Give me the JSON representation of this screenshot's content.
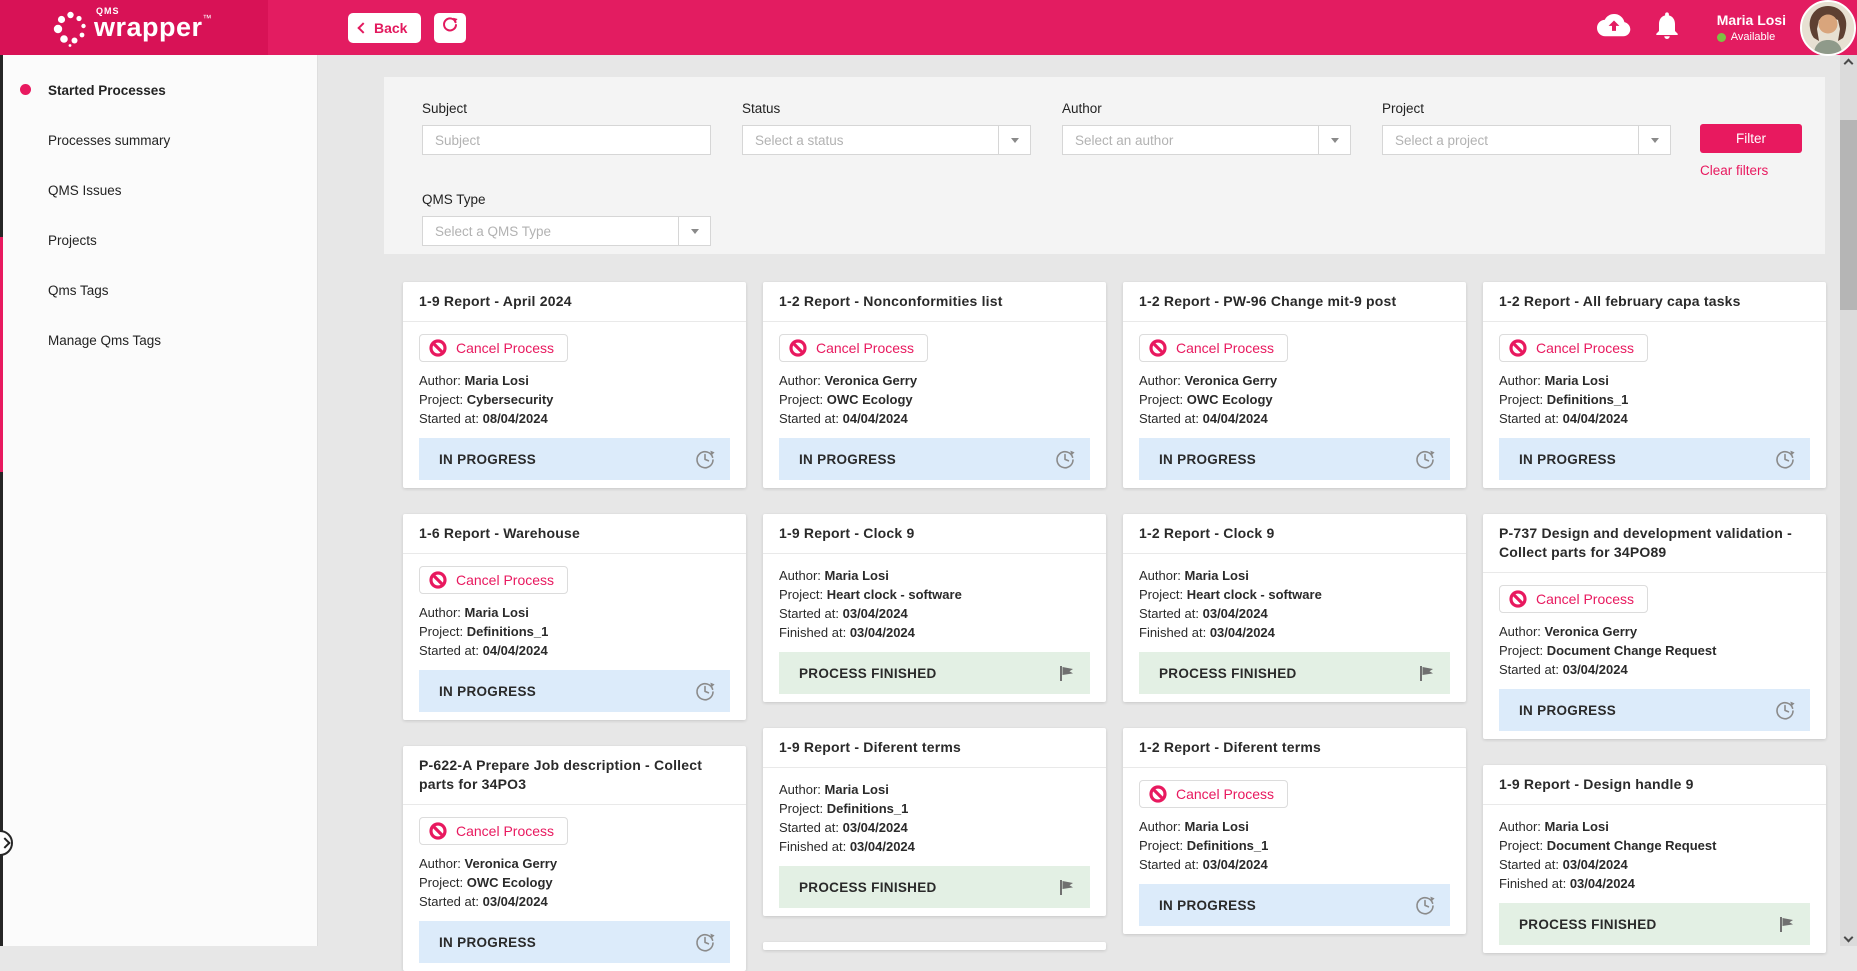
{
  "header": {
    "logo": {
      "qms": "QMS",
      "brand": "wrapper",
      "tm": "TM"
    },
    "back_label": "Back",
    "user": {
      "name": "Maria Losi",
      "status": "Available"
    }
  },
  "sidebar": {
    "items": [
      {
        "label": "Started Processes",
        "active": true
      },
      {
        "label": "Processes summary",
        "active": false
      },
      {
        "label": "QMS Issues",
        "active": false
      },
      {
        "label": "Projects",
        "active": false
      },
      {
        "label": "Qms Tags",
        "active": false
      },
      {
        "label": "Manage Qms Tags",
        "active": false
      }
    ]
  },
  "filters": {
    "subject_label": "Subject",
    "subject_placeholder": "Subject",
    "status_label": "Status",
    "status_placeholder": "Select a status",
    "author_label": "Author",
    "author_placeholder": "Select an author",
    "project_label": "Project",
    "project_placeholder": "Select a project",
    "qms_type_label": "QMS Type",
    "qms_type_placeholder": "Select a QMS Type",
    "filter_button": "Filter",
    "clear_filters": "Clear filters"
  },
  "labels": {
    "author_prefix": "Author:",
    "project_prefix": "Project:",
    "started_prefix": "Started at:",
    "finished_prefix": "Finished at:",
    "cancel_button": "Cancel Process",
    "in_progress": "IN PROGRESS",
    "process_finished": "PROCESS FINISHED"
  },
  "colors": {
    "accent": "#e8195f",
    "header": "#e31c61",
    "in_progress_bg": "#dcebfa",
    "finished_bg": "#e3f0e4",
    "available_green": "#7dc243"
  },
  "board": {
    "columns": [
      [
        {
          "title": "1-9 Report - April 2024",
          "cancel": true,
          "author": "Maria Losi",
          "project": "Cybersecurity",
          "started_at": "08/04/2024",
          "finished_at": null,
          "status": "IN PROGRESS"
        },
        {
          "title": "1-6 Report - Warehouse",
          "cancel": true,
          "author": "Maria Losi",
          "project": "Definitions_1",
          "started_at": "04/04/2024",
          "finished_at": null,
          "status": "IN PROGRESS"
        },
        {
          "title": "P-622-A Prepare Job description - Collect parts for 34PO3",
          "cancel": true,
          "author": "Veronica Gerry",
          "project": "OWC Ecology",
          "started_at": "03/04/2024",
          "finished_at": null,
          "status": "IN PROGRESS"
        }
      ],
      [
        {
          "title": "1-2 Report - Nonconformities list",
          "cancel": true,
          "author": "Veronica Gerry",
          "project": "OWC Ecology",
          "started_at": "04/04/2024",
          "finished_at": null,
          "status": "IN PROGRESS"
        },
        {
          "title": "1-9 Report - Clock 9",
          "cancel": false,
          "author": "Maria Losi",
          "project": "Heart clock - software",
          "started_at": "03/04/2024",
          "finished_at": "03/04/2024",
          "status": "PROCESS FINISHED"
        },
        {
          "title": "1-9 Report - Diferent terms",
          "cancel": false,
          "author": "Maria Losi",
          "project": "Definitions_1",
          "started_at": "03/04/2024",
          "finished_at": "03/04/2024",
          "status": "PROCESS FINISHED"
        },
        {
          "stub": true
        }
      ],
      [
        {
          "title": "1-2 Report - PW-96 Change mit-9 post",
          "cancel": true,
          "author": "Veronica Gerry",
          "project": "OWC Ecology",
          "started_at": "04/04/2024",
          "finished_at": null,
          "status": "IN PROGRESS"
        },
        {
          "title": "1-2 Report - Clock 9",
          "cancel": false,
          "author": "Maria Losi",
          "project": "Heart clock - software",
          "started_at": "03/04/2024",
          "finished_at": "03/04/2024",
          "status": "PROCESS FINISHED"
        },
        {
          "title": "1-2 Report - Diferent terms",
          "cancel": true,
          "author": "Maria Losi",
          "project": "Definitions_1",
          "started_at": "03/04/2024",
          "finished_at": null,
          "status": "IN PROGRESS"
        }
      ],
      [
        {
          "title": "1-2 Report - All february capa tasks",
          "cancel": true,
          "author": "Maria Losi",
          "project": "Definitions_1",
          "started_at": "04/04/2024",
          "finished_at": null,
          "status": "IN PROGRESS"
        },
        {
          "title": "P-737 Design and development validation - Collect parts for 34PO89",
          "cancel": true,
          "author": "Veronica Gerry",
          "project": "Document Change Request",
          "started_at": "03/04/2024",
          "finished_at": null,
          "status": "IN PROGRESS"
        },
        {
          "title": "1-9 Report - Design handle 9",
          "cancel": false,
          "author": "Maria Losi",
          "project": "Document Change Request",
          "started_at": "03/04/2024",
          "finished_at": "03/04/2024",
          "status": "PROCESS FINISHED"
        }
      ]
    ]
  }
}
